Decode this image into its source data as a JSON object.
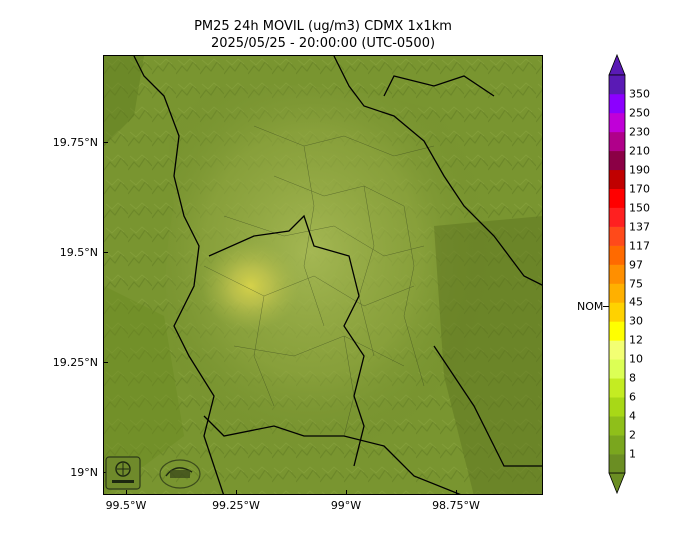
{
  "title": {
    "line1": "PM25 24h MOVIL (ug/m3) CDMX 1x1km",
    "line2": "2025/05/25 - 20:00:00 (UTC-0500)"
  },
  "map": {
    "type": "pollution-raster",
    "lat_range": [
      18.95,
      19.95
    ],
    "lon_range": [
      -99.55,
      -98.55
    ],
    "y_ticks": [
      "19.75°N",
      "19.5°N",
      "19.25°N",
      "19°N"
    ],
    "x_ticks": [
      "99.5°W",
      "99.25°W",
      "99°W",
      "98.75°W"
    ],
    "logos": [
      "sedema-logo",
      "secondary-agency-logo"
    ]
  },
  "colorbar": {
    "nom_label": "NOM",
    "levels": [
      "1",
      "2",
      "4",
      "6",
      "8",
      "10",
      "12",
      "30",
      "45",
      "75",
      "97",
      "117",
      "137",
      "150",
      "170",
      "190",
      "210",
      "230",
      "250",
      "350"
    ],
    "colors": [
      "#6b8e23",
      "#7aa61e",
      "#8fbf1a",
      "#a8d817",
      "#c4ec22",
      "#dcff55",
      "#f3ff73",
      "#ffff00",
      "#ffd200",
      "#ffb000",
      "#ff8f00",
      "#ff6a00",
      "#ff4a1a",
      "#ff2020",
      "#ff0000",
      "#c00000",
      "#8b0045",
      "#b0008a",
      "#c000d8",
      "#8c00ff",
      "#5a1ab5"
    ]
  }
}
